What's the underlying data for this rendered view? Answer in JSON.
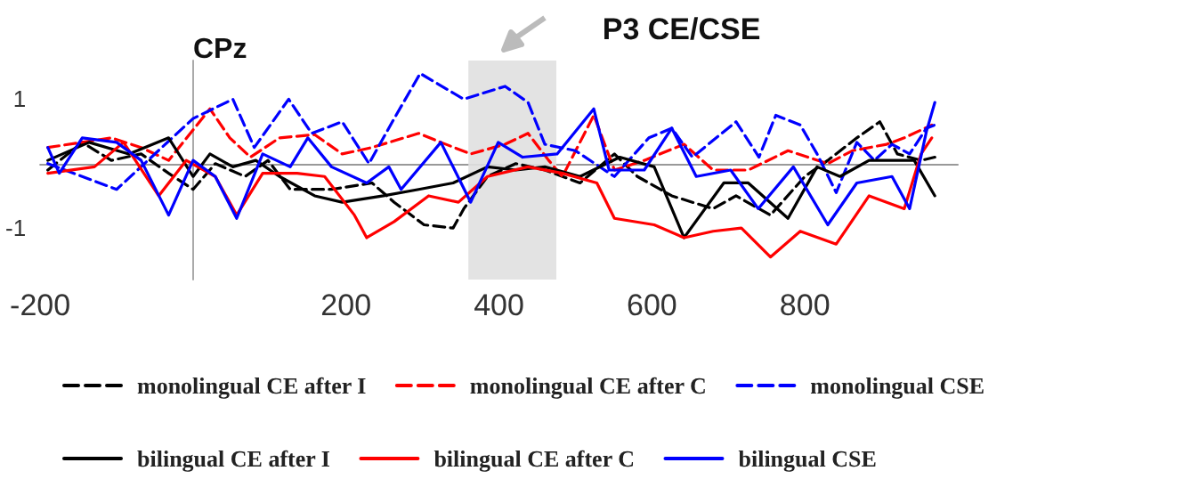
{
  "chart_data": {
    "type": "line",
    "ylabel": "CPz",
    "xlim": [
      -200,
      1000
    ],
    "ylim": [
      -1.8,
      1.6
    ],
    "xticks": [
      -200,
      200,
      400,
      600,
      800
    ],
    "yticks": [
      -1,
      1
    ],
    "marker": "none",
    "legend": "bottom",
    "bands": [
      {
        "axis": "x",
        "from": 360,
        "to": 475,
        "label": "P3 CE/CSE",
        "color": "#e0e0e0"
      }
    ],
    "series": [
      {
        "name": "monolingual CE after I",
        "color": "#000000",
        "line_style": "dashed",
        "x": [
          -190,
          -145,
          -107,
          -68,
          -32,
          0,
          29,
          68,
          98,
          127,
          181,
          234,
          263,
          302,
          340,
          354,
          385,
          422,
          460,
          506,
          551,
          581,
          626,
          680,
          710,
          755,
          800,
          830,
          868,
          898,
          921,
          952,
          970
        ],
        "values": [
          -0.1,
          0.33,
          0.05,
          0.15,
          -0.15,
          -0.4,
          0,
          -0.2,
          0.05,
          -0.4,
          -0.4,
          -0.3,
          -0.6,
          -0.95,
          -1.0,
          -0.7,
          -0.2,
          0,
          -0.1,
          -0.3,
          0.15,
          -0.2,
          -0.5,
          -0.7,
          -0.5,
          -0.8,
          -0.2,
          0.05,
          0.4,
          0.65,
          0.15,
          0.05,
          0.1
        ]
      },
      {
        "name": "monolingual CE after C",
        "color": "#ff0000",
        "line_style": "dashed",
        "x": [
          -190,
          -107,
          -68,
          -32,
          22,
          48,
          75,
          113,
          159,
          195,
          234,
          295,
          324,
          363,
          408,
          438,
          465,
          483,
          524,
          551,
          590,
          642,
          680,
          726,
          778,
          830,
          862,
          907,
          930,
          966
        ],
        "values": [
          0.25,
          0.4,
          0.25,
          0.05,
          0.85,
          0.4,
          0.1,
          0.4,
          0.45,
          0.15,
          0.25,
          0.47,
          0.33,
          0.15,
          0.3,
          0.47,
          0.05,
          -0.2,
          0.75,
          -0.1,
          0.05,
          0.3,
          -0.1,
          -0.1,
          0.2,
          0,
          0.2,
          0.3,
          0.4,
          0.6
        ]
      },
      {
        "name": "monolingual CSE",
        "color": "#0000ff",
        "line_style": "dashed",
        "x": [
          -190,
          -100,
          0,
          52,
          80,
          125,
          155,
          195,
          230,
          263,
          297,
          354,
          408,
          438,
          460,
          500,
          551,
          596,
          626,
          653,
          710,
          740,
          762,
          794,
          816,
          841,
          868,
          891,
          914,
          937,
          959,
          970
        ],
        "values": [
          0,
          -0.4,
          0.7,
          1.0,
          0.25,
          1.0,
          0.47,
          0.65,
          0,
          0.7,
          1.4,
          1.0,
          1.2,
          0.95,
          0.3,
          0.2,
          -0.2,
          0.4,
          0.55,
          0.1,
          0.65,
          0.1,
          0.75,
          0.6,
          0.15,
          -0.45,
          0.33,
          0.05,
          0.3,
          0.15,
          0.55,
          0.6
        ]
      },
      {
        "name": "bilingual CE after I",
        "color": "#000000",
        "line_style": "solid",
        "x": [
          -190,
          -136,
          -84,
          -32,
          0,
          22,
          52,
          82,
          113,
          159,
          195,
          249,
          295,
          340,
          385,
          422,
          460,
          506,
          558,
          603,
          642,
          694,
          726,
          778,
          816,
          846,
          884,
          943,
          970
        ],
        "values": [
          0.05,
          0.33,
          0.15,
          0.4,
          -0.2,
          0.15,
          -0.05,
          0.05,
          -0.2,
          -0.5,
          -0.6,
          -0.5,
          -0.4,
          -0.3,
          -0.05,
          -0.1,
          -0.05,
          -0.2,
          0.1,
          -0.05,
          -1.15,
          -0.3,
          -0.3,
          -0.85,
          -0.05,
          -0.2,
          0.05,
          0.05,
          -0.5
        ]
      },
      {
        "name": "bilingual CE after C",
        "color": "#ff0000",
        "line_style": "solid",
        "x": [
          -190,
          -129,
          -91,
          -45,
          -9,
          29,
          57,
          91,
          136,
          172,
          211,
          227,
          263,
          308,
          347,
          385,
          438,
          483,
          528,
          551,
          603,
          642,
          680,
          717,
          755,
          794,
          841,
          884,
          930,
          952,
          966
        ],
        "values": [
          -0.15,
          -0.05,
          0.33,
          -0.5,
          0.05,
          -0.2,
          -0.8,
          -0.15,
          -0.15,
          -0.2,
          -0.8,
          -1.15,
          -0.9,
          -0.5,
          -0.6,
          -0.2,
          -0.05,
          -0.15,
          -0.3,
          -0.85,
          -0.95,
          -1.15,
          -1.05,
          -1.0,
          -1.45,
          -1.05,
          -1.25,
          -0.5,
          -0.7,
          0.15,
          0.4
        ]
      },
      {
        "name": "bilingual CSE",
        "color": "#0000ff",
        "line_style": "solid",
        "x": [
          -190,
          -175,
          -145,
          -100,
          -68,
          -32,
          0,
          29,
          57,
          91,
          127,
          150,
          181,
          227,
          256,
          272,
          324,
          363,
          399,
          431,
          476,
          524,
          544,
          590,
          626,
          658,
          703,
          739,
          785,
          830,
          868,
          914,
          937,
          959,
          970
        ],
        "values": [
          0.25,
          -0.15,
          0.4,
          0.33,
          0.05,
          -0.8,
          0.05,
          -0.2,
          -0.85,
          0.15,
          -0.05,
          0.4,
          -0.05,
          -0.3,
          -0.05,
          -0.4,
          0.33,
          -0.6,
          0.33,
          0.1,
          0.15,
          0.85,
          -0.1,
          -0.1,
          0.55,
          -0.2,
          -0.1,
          -0.7,
          -0.05,
          -0.95,
          -0.3,
          -0.2,
          -0.7,
          0.5,
          0.95
        ]
      }
    ]
  }
}
